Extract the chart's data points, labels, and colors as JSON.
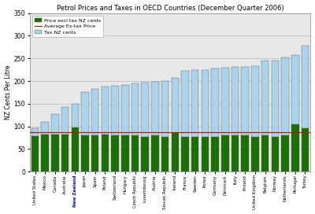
{
  "title": "Petrol Prices and Taxes in OECD Countries (December Quarter 2006)",
  "ylabel": "NZ Cents Per Litre",
  "ylim": [
    0,
    350
  ],
  "yticks": [
    0,
    50,
    100,
    150,
    200,
    250,
    300,
    350
  ],
  "avg_extax": 87,
  "countries": [
    "United States",
    "Mexico",
    "Canada",
    "Australia",
    "New Zealand",
    "Japan",
    "Spain",
    "Poland",
    "Switzerland",
    "Hungary",
    "Czech Republic",
    "Luxembourg",
    "Austria",
    "Slovak Republic",
    "Ireland",
    "France",
    "Sweden",
    "Korea",
    "Germany",
    "Denmark",
    "Italy",
    "Finland",
    "United Kingdom",
    "Belgium",
    "Norway",
    "Netherlands",
    "Portugal",
    "Turkey"
  ],
  "extax": [
    78,
    82,
    82,
    82,
    97,
    80,
    80,
    82,
    80,
    80,
    80,
    76,
    80,
    76,
    85,
    76,
    76,
    76,
    76,
    80,
    80,
    80,
    76,
    80,
    76,
    80,
    105,
    95
  ],
  "totals": [
    95,
    110,
    127,
    143,
    150,
    175,
    183,
    188,
    190,
    192,
    195,
    196,
    198,
    200,
    207,
    222,
    225,
    225,
    228,
    230,
    231,
    232,
    233,
    245,
    246,
    252,
    257,
    278
  ],
  "bar_color_extax": "#1a7000",
  "bar_color_tax": "#aad4ee",
  "bar_edge_color": "#555555",
  "avg_line_color": "#aa2200",
  "highlight_country": "New Zealand",
  "highlight_color": "#0000cc",
  "plot_bg_color": "#e8e8e8",
  "fig_bg_color": "#ffffff",
  "legend_tax": "Tax NZ cents",
  "legend_extax": "Price excl tax NZ cents",
  "legend_avg": "Average Ex-tax Price"
}
